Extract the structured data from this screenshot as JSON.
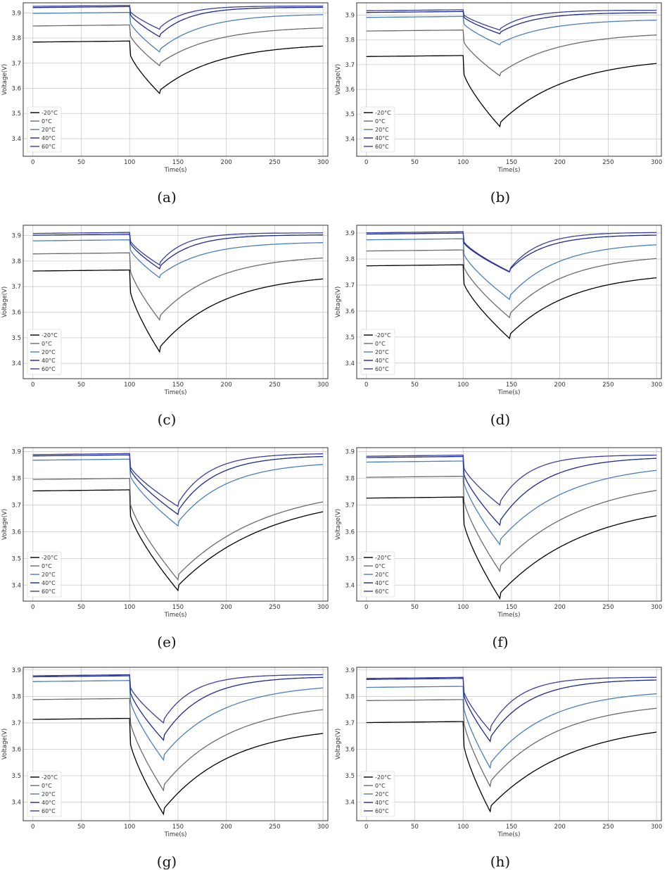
{
  "colors": [
    "#000000",
    "#6b6b6b",
    "#4a7fb8",
    "#1c2a8a",
    "#3a3f9a"
  ],
  "chart_data": [
    {
      "panel": "(a)",
      "type": "line",
      "xlabel": "Time(s)",
      "ylabel": "Voltage(V)",
      "xlim": [
        -10,
        305
      ],
      "ylim": [
        3.33,
        3.94
      ],
      "xticks": [
        "0",
        "50",
        "100",
        "150",
        "200",
        "250",
        "300"
      ],
      "yticks": [
        "3.4",
        "3.5",
        "3.6",
        "3.7",
        "3.8",
        "3.9"
      ],
      "legend_loc": "lower-left",
      "pulse_end": 131,
      "series": [
        {
          "name": "-20°C",
          "v0": 3.788,
          "vmin": 3.58,
          "vend": 3.768,
          "tau": 60
        },
        {
          "name": "0°C",
          "v0": 3.852,
          "vmin": 3.69,
          "vend": 3.84,
          "tau": 55
        },
        {
          "name": "20°C",
          "v0": 3.902,
          "vmin": 3.745,
          "vend": 3.893,
          "tau": 45
        },
        {
          "name": "40°C",
          "v0": 3.925,
          "vmin": 3.805,
          "vend": 3.922,
          "tau": 30
        },
        {
          "name": "60°C",
          "v0": 3.93,
          "vmin": 3.835,
          "vend": 3.927,
          "tau": 25
        }
      ]
    },
    {
      "panel": "(b)",
      "type": "line",
      "xlabel": "Time(s)",
      "ylabel": "Voltage(V)",
      "xlim": [
        -10,
        305
      ],
      "ylim": [
        3.33,
        3.95
      ],
      "xticks": [
        "0",
        "50",
        "100",
        "150",
        "200",
        "250",
        "300"
      ],
      "yticks": [
        "3.4",
        "3.5",
        "3.6",
        "3.7",
        "3.8",
        "3.9"
      ],
      "legend_loc": "lower-left",
      "pulse_end": 138,
      "series": [
        {
          "name": "-20°C",
          "v0": 3.737,
          "vmin": 3.45,
          "vend": 3.705,
          "tau": 70
        },
        {
          "name": "0°C",
          "v0": 3.84,
          "vmin": 3.655,
          "vend": 3.82,
          "tau": 60
        },
        {
          "name": "20°C",
          "v0": 3.895,
          "vmin": 3.78,
          "vend": 3.88,
          "tau": 50
        },
        {
          "name": "40°C",
          "v0": 3.915,
          "vmin": 3.825,
          "vend": 3.91,
          "tau": 35
        },
        {
          "name": "60°C",
          "v0": 3.922,
          "vmin": 3.84,
          "vend": 3.92,
          "tau": 28
        }
      ]
    },
    {
      "panel": "(c)",
      "type": "line",
      "xlabel": "Time(s)",
      "ylabel": "Voltage(V)",
      "xlim": [
        -10,
        305
      ],
      "ylim": [
        3.34,
        3.94
      ],
      "xticks": [
        "0",
        "50",
        "100",
        "150",
        "200",
        "250",
        "300"
      ],
      "yticks": [
        "3.4",
        "3.5",
        "3.6",
        "3.7",
        "3.8",
        "3.9"
      ],
      "legend_loc": "lower-left",
      "pulse_end": 131,
      "series": [
        {
          "name": "-20°C",
          "v0": 3.765,
          "vmin": 3.445,
          "vend": 3.73,
          "tau": 65
        },
        {
          "name": "0°C",
          "v0": 3.832,
          "vmin": 3.57,
          "vend": 3.812,
          "tau": 58
        },
        {
          "name": "20°C",
          "v0": 3.883,
          "vmin": 3.735,
          "vend": 3.872,
          "tau": 45
        },
        {
          "name": "40°C",
          "v0": 3.905,
          "vmin": 3.77,
          "vend": 3.902,
          "tau": 32
        },
        {
          "name": "60°C",
          "v0": 3.912,
          "vmin": 3.785,
          "vend": 3.91,
          "tau": 25
        }
      ]
    },
    {
      "panel": "(d)",
      "type": "line",
      "xlabel": "Time(s)",
      "ylabel": "Voltage(V)",
      "xlim": [
        -10,
        305
      ],
      "ylim": [
        3.34,
        3.93
      ],
      "xticks": [
        "0",
        "50",
        "100",
        "150",
        "200",
        "250",
        "300"
      ],
      "yticks": [
        "3.4",
        "3.5",
        "3.6",
        "3.7",
        "3.8",
        "3.9"
      ],
      "legend_loc": "lower-left",
      "pulse_end": 148,
      "series": [
        {
          "name": "-20°C",
          "v0": 3.778,
          "vmin": 3.495,
          "vend": 3.728,
          "tau": 65
        },
        {
          "name": "0°C",
          "v0": 3.835,
          "vmin": 3.575,
          "vend": 3.802,
          "tau": 58
        },
        {
          "name": "20°C",
          "v0": 3.878,
          "vmin": 3.645,
          "vend": 3.855,
          "tau": 50
        },
        {
          "name": "40°C",
          "v0": 3.9,
          "vmin": 3.75,
          "vend": 3.892,
          "tau": 35
        },
        {
          "name": "60°C",
          "v0": 3.905,
          "vmin": 3.752,
          "vend": 3.902,
          "tau": 30
        }
      ]
    },
    {
      "panel": "(e)",
      "type": "line",
      "xlabel": "Time(s)",
      "ylabel": "Voltage(V)",
      "xlim": [
        -10,
        305
      ],
      "ylim": [
        3.34,
        3.915
      ],
      "xticks": [
        "0",
        "50",
        "100",
        "150",
        "200",
        "250",
        "300"
      ],
      "yticks": [
        "3.4",
        "3.5",
        "3.6",
        "3.7",
        "3.8",
        "3.9"
      ],
      "legend_loc": "lower-left",
      "pulse_end": 150,
      "series": [
        {
          "name": "-20°C",
          "v0": 3.757,
          "vmin": 3.38,
          "vend": 3.675,
          "tau": 95
        },
        {
          "name": "0°C",
          "v0": 3.8,
          "vmin": 3.42,
          "vend": 3.712,
          "tau": 90
        },
        {
          "name": "20°C",
          "v0": 3.872,
          "vmin": 3.622,
          "vend": 3.852,
          "tau": 50
        },
        {
          "name": "40°C",
          "v0": 3.888,
          "vmin": 3.665,
          "vend": 3.882,
          "tau": 38
        },
        {
          "name": "60°C",
          "v0": 3.893,
          "vmin": 3.695,
          "vend": 3.892,
          "tau": 32
        }
      ]
    },
    {
      "panel": "(f)",
      "type": "line",
      "xlabel": "Time(s)",
      "ylabel": "Voltage(V)",
      "xlim": [
        -10,
        305
      ],
      "ylim": [
        3.34,
        3.915
      ],
      "xticks": [
        "0",
        "50",
        "100",
        "150",
        "200",
        "250",
        "300"
      ],
      "yticks": [
        "3.4",
        "3.5",
        "3.6",
        "3.7",
        "3.8",
        "3.9"
      ],
      "legend_loc": "lower-left",
      "pulse_end": 138,
      "series": [
        {
          "name": "-20°C",
          "v0": 3.73,
          "vmin": 3.35,
          "vend": 3.66,
          "tau": 90
        },
        {
          "name": "0°C",
          "v0": 3.808,
          "vmin": 3.452,
          "vend": 3.755,
          "tau": 85
        },
        {
          "name": "20°C",
          "v0": 3.865,
          "vmin": 3.552,
          "vend": 3.83,
          "tau": 70
        },
        {
          "name": "40°C",
          "v0": 3.882,
          "vmin": 3.625,
          "vend": 3.875,
          "tau": 45
        },
        {
          "name": "60°C",
          "v0": 3.887,
          "vmin": 3.7,
          "vend": 3.887,
          "tau": 30
        }
      ]
    },
    {
      "panel": "(g)",
      "type": "line",
      "xlabel": "Time(s)",
      "ylabel": "Voltage(V)",
      "xlim": [
        -10,
        305
      ],
      "ylim": [
        3.33,
        3.91
      ],
      "xticks": [
        "0",
        "50",
        "100",
        "150",
        "200",
        "250",
        "300"
      ],
      "yticks": [
        "3.4",
        "3.5",
        "3.6",
        "3.7",
        "3.8",
        "3.9"
      ],
      "legend_loc": "lower-left",
      "pulse_end": 135,
      "series": [
        {
          "name": "-20°C",
          "v0": 3.717,
          "vmin": 3.355,
          "vend": 3.66,
          "tau": 70
        },
        {
          "name": "0°C",
          "v0": 3.792,
          "vmin": 3.445,
          "vend": 3.75,
          "tau": 70
        },
        {
          "name": "20°C",
          "v0": 3.86,
          "vmin": 3.56,
          "vend": 3.832,
          "tau": 60
        },
        {
          "name": "40°C",
          "v0": 3.878,
          "vmin": 3.635,
          "vend": 3.872,
          "tau": 40
        },
        {
          "name": "60°C",
          "v0": 3.882,
          "vmin": 3.7,
          "vend": 3.882,
          "tau": 30
        }
      ]
    },
    {
      "panel": "(h)",
      "type": "line",
      "xlabel": "Time(s)",
      "ylabel": "Voltage(V)",
      "xlim": [
        -10,
        305
      ],
      "ylim": [
        3.33,
        3.91
      ],
      "xticks": [
        "0",
        "50",
        "100",
        "150",
        "200",
        "250",
        "300"
      ],
      "yticks": [
        "3.4",
        "3.5",
        "3.6",
        "3.7",
        "3.8",
        "3.9"
      ],
      "legend_loc": "lower-left",
      "pulse_end": 128,
      "series": [
        {
          "name": "-20°C",
          "v0": 3.705,
          "vmin": 3.365,
          "vend": 3.665,
          "tau": 85
        },
        {
          "name": "0°C",
          "v0": 3.788,
          "vmin": 3.46,
          "vend": 3.755,
          "tau": 70
        },
        {
          "name": "20°C",
          "v0": 3.838,
          "vmin": 3.53,
          "vend": 3.81,
          "tau": 60
        },
        {
          "name": "40°C",
          "v0": 3.868,
          "vmin": 3.63,
          "vend": 3.862,
          "tau": 40
        },
        {
          "name": "60°C",
          "v0": 3.872,
          "vmin": 3.67,
          "vend": 3.872,
          "tau": 30
        }
      ]
    }
  ]
}
